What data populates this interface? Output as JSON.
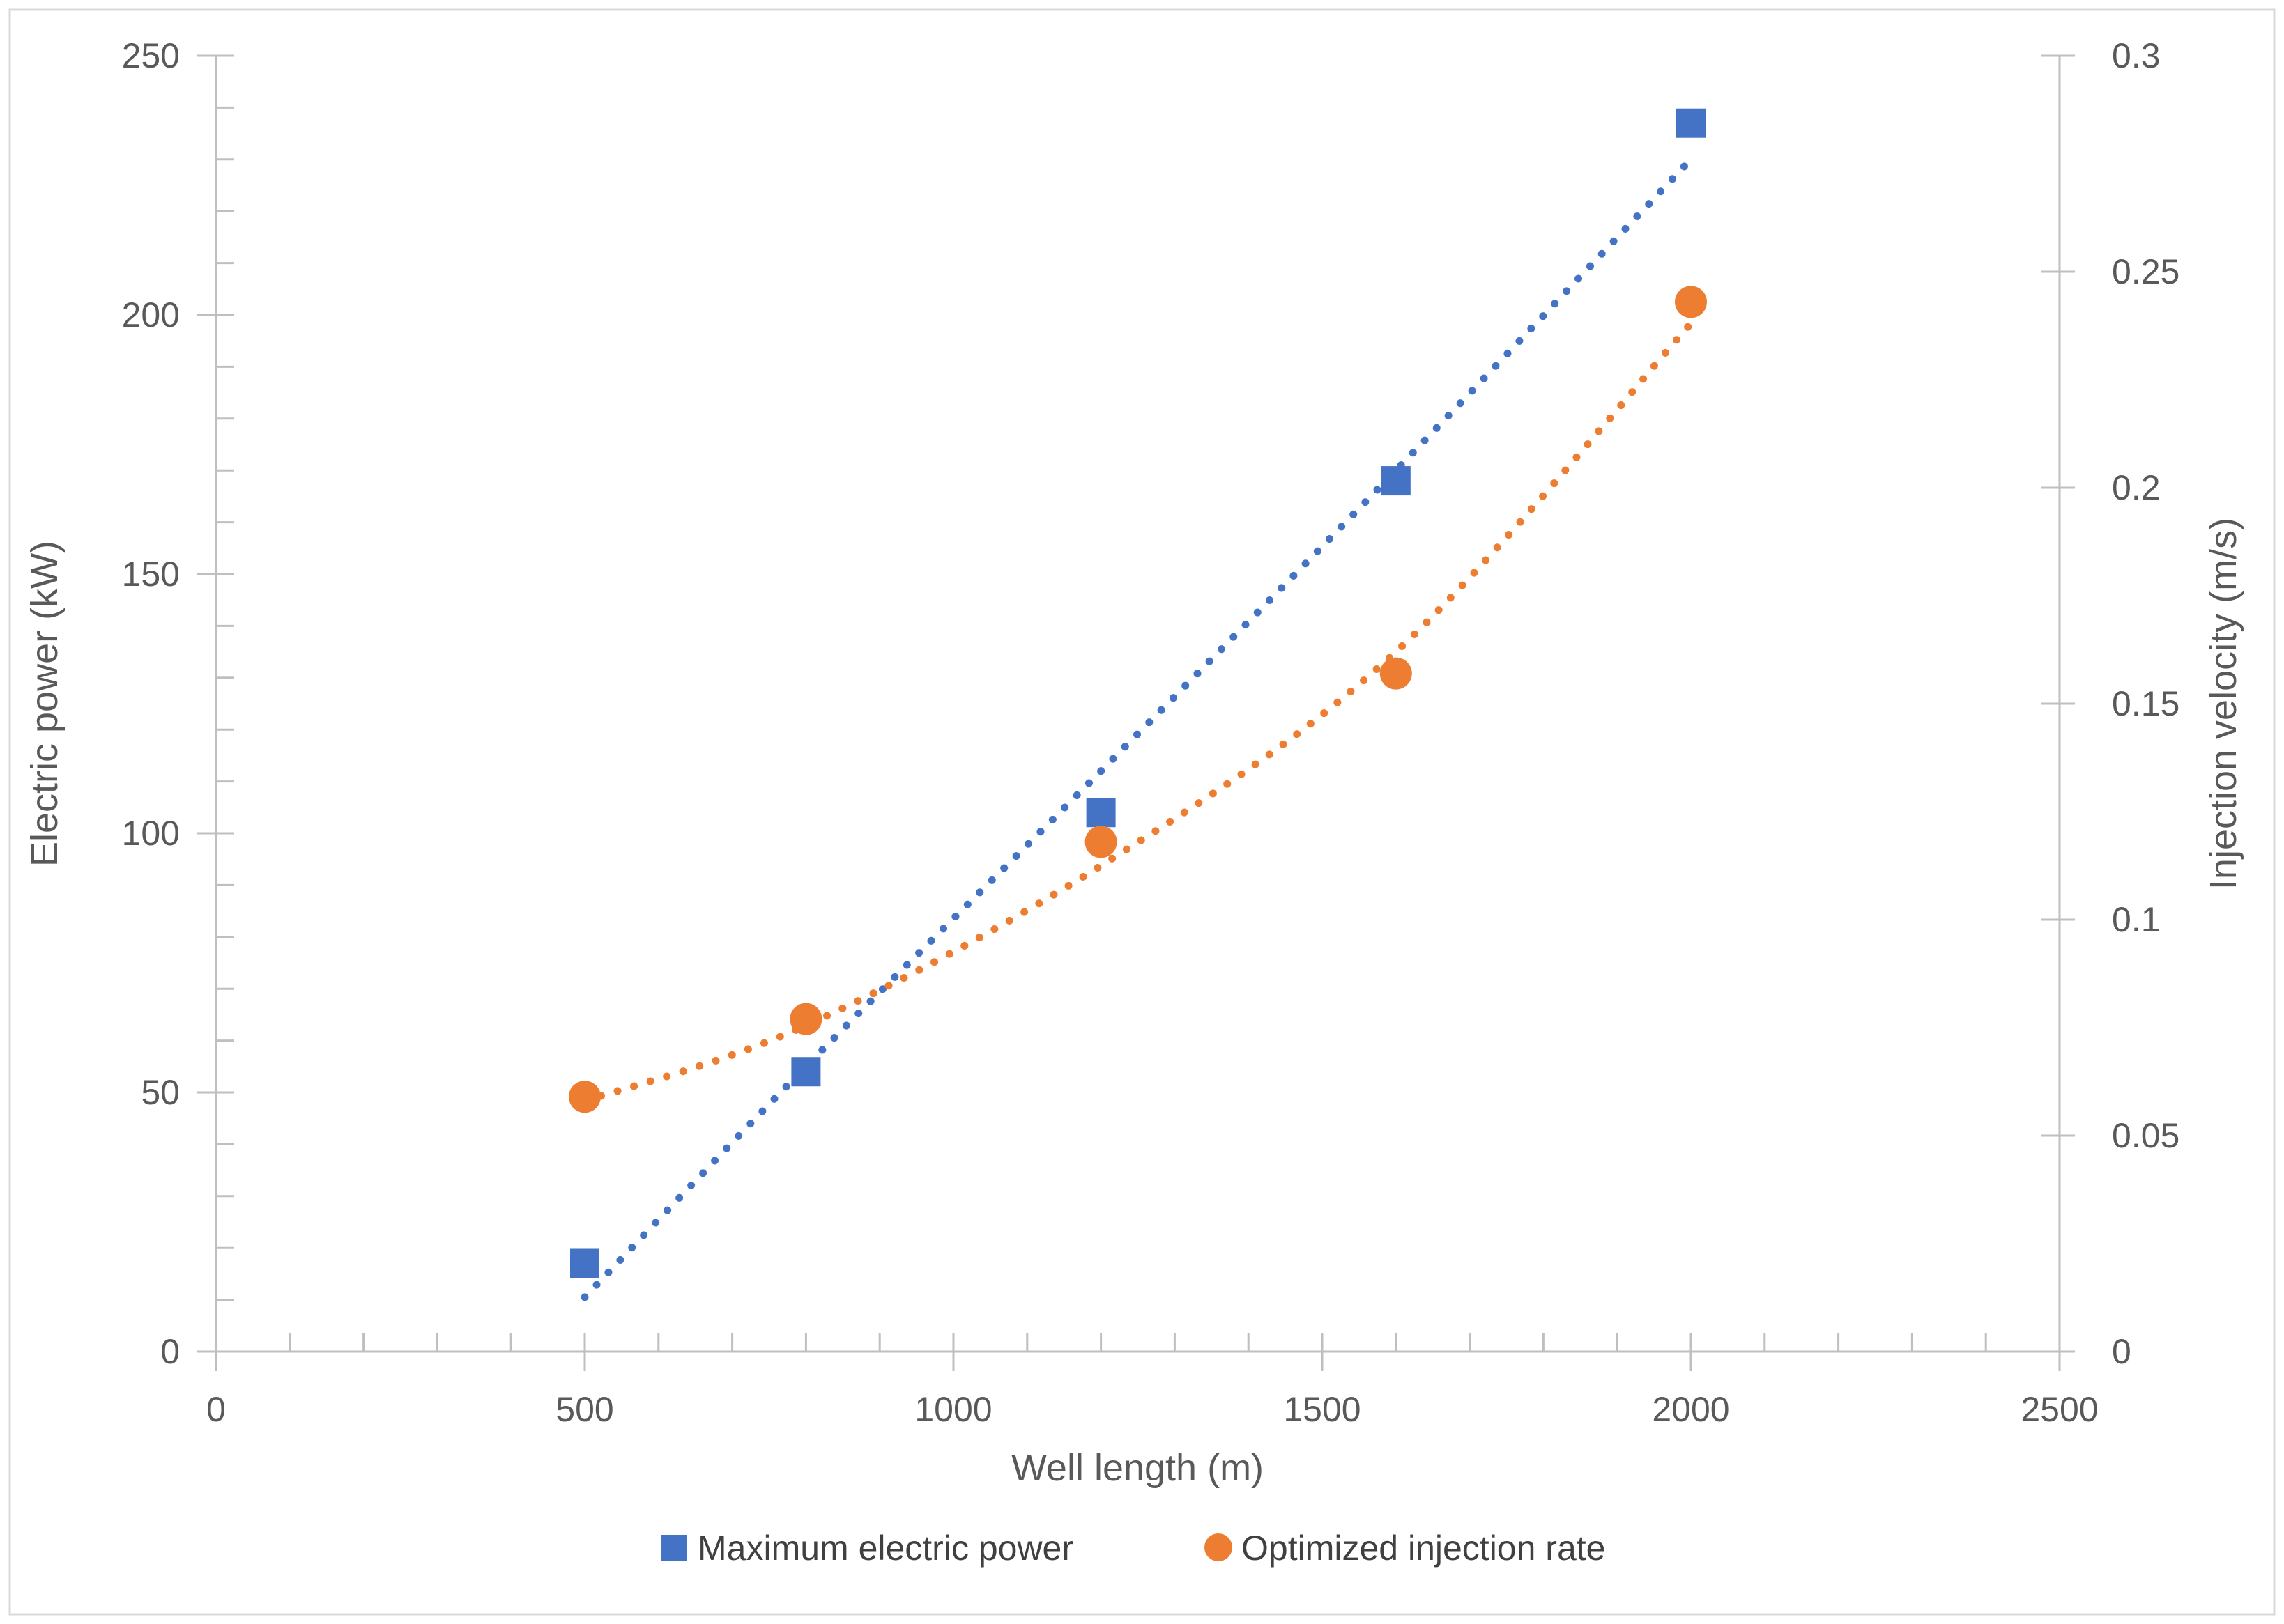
{
  "figure": {
    "background_color": "#FFFFFF",
    "border_color": "#D9D9D9",
    "axis_line_color": "#BFBFBF",
    "tick_label_color": "#595959",
    "legend_text_color": "#404040"
  },
  "chart_data": {
    "type": "scatter",
    "grid": false,
    "x": [
      500,
      800,
      1200,
      1600,
      2000
    ],
    "series": [
      {
        "name": "Maximum electric power",
        "axis": "left",
        "marker": "square",
        "color": "#4472C4",
        "values": [
          17,
          54,
          104,
          168,
          237
        ],
        "trendline": {
          "style": "dotted",
          "points": [
            [
              500,
              10.5
            ],
            [
              800,
              55
            ],
            [
              1200,
              112
            ],
            [
              1600,
              170
            ],
            [
              2000,
              230
            ]
          ]
        }
      },
      {
        "name": "Optimized injection rate",
        "axis": "right",
        "marker": "circle",
        "color": "#ED7D31",
        "values": [
          0.059,
          0.077,
          0.118,
          0.157,
          0.243
        ],
        "trendline": {
          "style": "dotted",
          "points": [
            [
              500,
              0.058
            ],
            [
              800,
              0.0755
            ],
            [
              1200,
              0.1125
            ],
            [
              1600,
              0.162
            ],
            [
              2000,
              0.238
            ]
          ]
        }
      }
    ],
    "x_axis": {
      "label": "Well length (m)",
      "min": 0,
      "max": 2500,
      "major_tick": 500,
      "minor_tick": 100,
      "tick_labels": [
        "0",
        "500",
        "1000",
        "1500",
        "2000",
        "2500"
      ]
    },
    "y_axis_left": {
      "label": "Electric power  (kW)",
      "min": 0,
      "max": 250,
      "major_tick": 50,
      "minor_tick": 10,
      "tick_labels": [
        "0",
        "50",
        "100",
        "150",
        "200",
        "250"
      ]
    },
    "y_axis_right": {
      "label": "Injection velocity (m/s)",
      "min": 0,
      "max": 0.3,
      "major_tick": 0.05,
      "tick_labels": [
        "0",
        "0.05",
        "0.1",
        "0.15",
        "0.2",
        "0.25",
        "0.3"
      ]
    },
    "legend": {
      "position": "bottom",
      "entries": [
        "Maximum electric power",
        "Optimized injection rate"
      ]
    }
  }
}
